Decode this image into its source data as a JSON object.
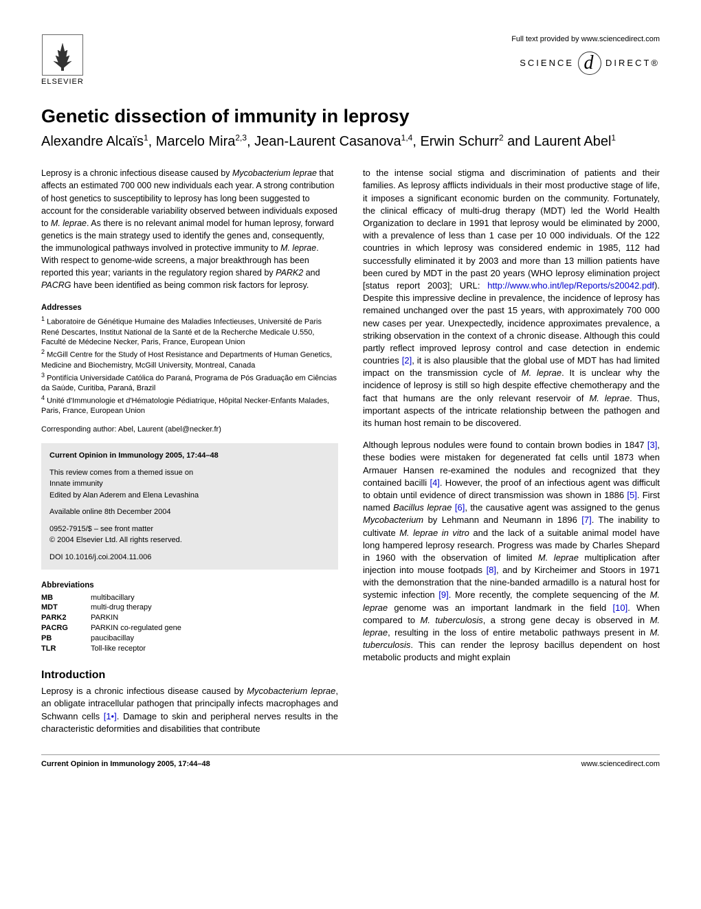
{
  "header": {
    "elsevier": "ELSEVIER",
    "provided": "Full text provided by www.sciencedirect.com",
    "science": "SCIENCE",
    "direct": "DIRECT®"
  },
  "title": "Genetic dissection of immunity in leprosy",
  "authors_html": "Alexandre Alcaïs<sup>1</sup>, Marcelo Mira<sup>2,3</sup>, Jean-Laurent Casanova<sup>1,4</sup>, Erwin Schurr<sup>2</sup> and Laurent Abel<sup>1</sup>",
  "abstract": "Leprosy is a chronic infectious disease caused by <em>Mycobacterium leprae</em> that affects an estimated 700 000 new individuals each year. A strong contribution of host genetics to susceptibility to leprosy has long been suggested to account for the considerable variability observed between individuals exposed to <em>M. leprae</em>. As there is no relevant animal model for human leprosy, forward genetics is the main strategy used to identify the genes and, consequently, the immunological pathways involved in protective immunity to <em>M. leprae</em>. With respect to genome-wide screens, a major breakthrough has been reported this year; variants in the regulatory region shared by <em>PARK2</em> and <em>PACRG</em> have been identified as being common risk factors for leprosy.",
  "addresses_label": "Addresses",
  "addresses": [
    "<sup>1</sup> Laboratoire de Génétique Humaine des Maladies Infectieuses, Université de Paris René Descartes, Institut National de la Santé et de la Recherche Medicale U.550, Faculté de Médecine Necker, Paris, France, European Union",
    "<sup>2</sup> McGill Centre for the Study of Host Resistance and Departments of Human Genetics, Medicine and Biochemistry, McGill University, Montreal, Canada",
    "<sup>3</sup> Pontifícia Universidade Católica do Paraná, Programa de Pós Graduação em Ciências da Saúde, Curitiba, Paraná, Brazil",
    "<sup>4</sup> Unité d'Immunologie et d'Hématologie Pédiatrique, Hôpital Necker-Enfants Malades, Paris, France, European Union"
  ],
  "corresponding": "Corresponding author: Abel, Laurent (abel@necker.fr)",
  "infobox": {
    "journal": "Current Opinion in Immunology 2005, 17:44–48",
    "issue1": "This review comes from a themed issue on",
    "issue2": "Innate immunity",
    "editors": "Edited by Alan Aderem and Elena Levashina",
    "online": "Available online 8th December 2004",
    "issn": "0952-7915/$ – see front matter",
    "copyright": "© 2004 Elsevier Ltd. All rights reserved.",
    "doi": "DOI 10.1016/j.coi.2004.11.006"
  },
  "abbrev_label": "Abbreviations",
  "abbreviations": [
    {
      "k": "MB",
      "v": "multibacillary"
    },
    {
      "k": "MDT",
      "v": "multi-drug therapy"
    },
    {
      "k": "PARK2",
      "v": "PARKIN"
    },
    {
      "k": "PACRG",
      "v": "PARKIN co-regulated gene"
    },
    {
      "k": "PB",
      "v": "paucibacillay"
    },
    {
      "k": "TLR",
      "v": "Toll-like receptor"
    }
  ],
  "intro_heading": "Introduction",
  "intro_left": "Leprosy is a chronic infectious disease caused by <em>Mycobacterium leprae</em>, an obligate intracellular pathogen that principally infects macrophages and Schwann cells <span class=\"ref-link\">[1•]</span>. Damage to skin and peripheral nerves results in the characteristic deformities and disabilities that contribute",
  "right_p1": "to the intense social stigma and discrimination of patients and their families. As leprosy afflicts individuals in their most productive stage of life, it imposes a significant economic burden on the community. Fortunately, the clinical efficacy of multi-drug therapy (MDT) led the World Health Organization to declare in 1991 that leprosy would be eliminated by 2000, with a prevalence of less than 1 case per 10 000 individuals. Of the 122 countries in which leprosy was considered endemic in 1985, 112 had successfully eliminated it by 2003 and more than 13 million patients have been cured by MDT in the past 20 years (WHO leprosy elimination project [status report 2003]; URL: <span class=\"url-link\">http://www.who.int/lep/Reports/s20042.pdf</span>). Despite this impressive decline in prevalence, the incidence of leprosy has remained unchanged over the past 15 years, with approximately 700 000 new cases per year. Unexpectedly, incidence approximates prevalence, a striking observation in the context of a chronic disease. Although this could partly reflect improved leprosy control and case detection in endemic countries <span class=\"ref-link\">[2]</span>, it is also plausible that the global use of MDT has had limited impact on the transmission cycle of <em>M. leprae</em>. It is unclear why the incidence of leprosy is still so high despite effective chemotherapy and the fact that humans are the only relevant reservoir of <em>M. leprae</em>. Thus, important aspects of the intricate relationship between the pathogen and its human host remain to be discovered.",
  "right_p2": "Although leprous nodules were found to contain brown bodies in 1847 <span class=\"ref-link\">[3]</span>, these bodies were mistaken for degenerated fat cells until 1873 when Armauer Hansen re-examined the nodules and recognized that they contained bacilli <span class=\"ref-link\">[4]</span>. However, the proof of an infectious agent was difficult to obtain until evidence of direct transmission was shown in 1886 <span class=\"ref-link\">[5]</span>. First named <em>Bacillus leprae</em> <span class=\"ref-link\">[6]</span>, the causative agent was assigned to the genus <em>Mycobacterium</em> by Lehmann and Neumann in 1896 <span class=\"ref-link\">[7]</span>. The inability to cultivate <em>M. leprae in vitro</em> and the lack of a suitable animal model have long hampered leprosy research. Progress was made by Charles Shepard in 1960 with the observation of limited <em>M. leprae</em> multiplication after injection into mouse footpads <span class=\"ref-link\">[8]</span>, and by Kircheimer and Stoors in 1971 with the demonstration that the nine-banded armadillo is a natural host for systemic infection <span class=\"ref-link\">[9]</span>. More recently, the complete sequencing of the <em>M. leprae</em> genome was an important landmark in the field <span class=\"ref-link\">[10]</span>. When compared to <em>M. tuberculosis</em>, a strong gene decay is observed in <em>M. leprae</em>, resulting in the loss of entire metabolic pathways present in <em>M. tuberculosis</em>. This can render the leprosy bacillus dependent on host metabolic products and might explain",
  "footer": {
    "left": "Current Opinion in Immunology 2005, 17:44–48",
    "right": "www.sciencedirect.com"
  }
}
